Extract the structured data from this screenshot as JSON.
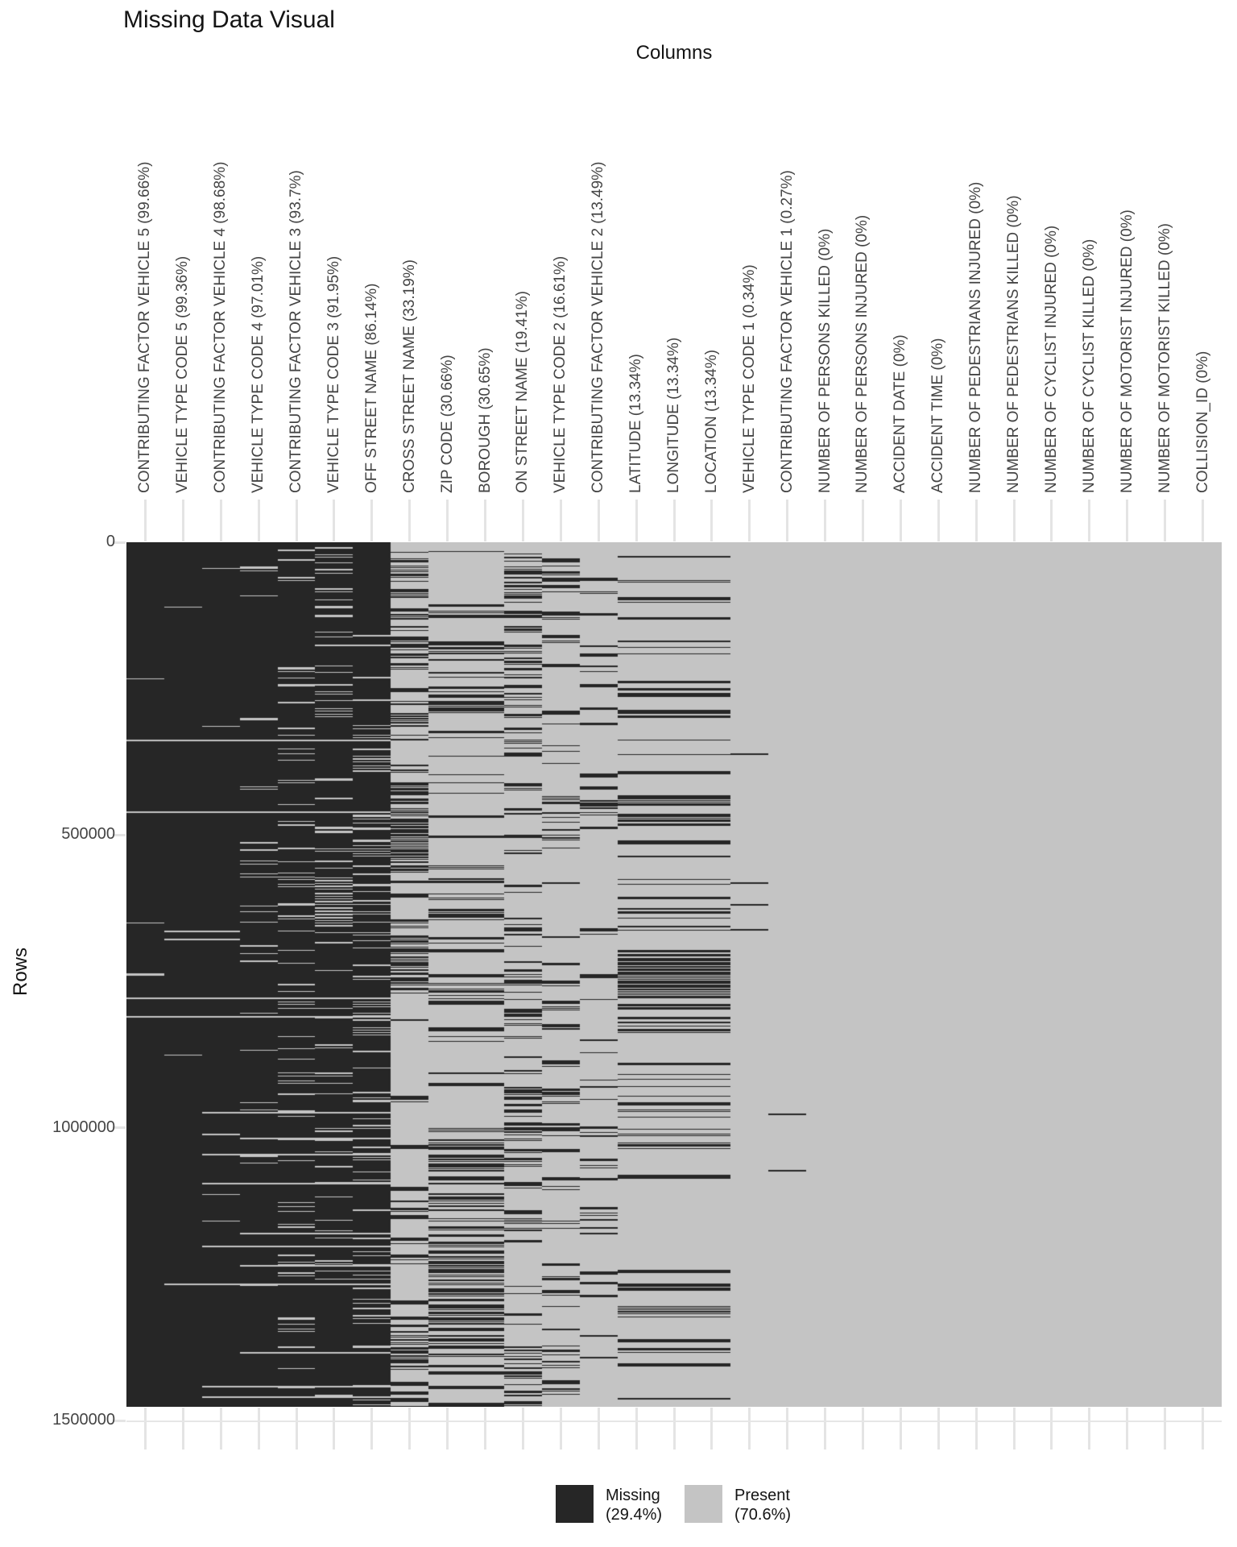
{
  "title": "Missing Data Visual",
  "x_axis": {
    "title": "Columns"
  },
  "y_axis": {
    "title": "Rows",
    "ticks": [
      "0",
      "500000",
      "1000000",
      "1500000"
    ]
  },
  "legend": {
    "missing": {
      "label": "Missing",
      "pct": "(29.4%)"
    },
    "present": {
      "label": "Present",
      "pct": "(70.6%)"
    }
  },
  "colors": {
    "missing": "#262626",
    "present": "#c4c4c4",
    "tick": "#e4e4e4",
    "grid": "#e6e6e6",
    "axis_text": "#444444",
    "title_text": "#141414"
  },
  "chart_data": {
    "type": "heatmap",
    "subtype": "missing-data-matrix",
    "title": "Missing Data Visual",
    "xlabel": "Columns",
    "ylabel": "Rows",
    "ylim": [
      0,
      1500000
    ],
    "rows_shown": 1480000,
    "overall_missing_pct": 29.4,
    "overall_present_pct": 70.6,
    "legend_position": "bottom",
    "columns": [
      {
        "label": "CONTRIBUTING FACTOR VEHICLE 5 (99.66%)",
        "missing_pct": 99.66,
        "seed": 11
      },
      {
        "label": "VEHICLE TYPE CODE 5 (99.36%)",
        "missing_pct": 99.36,
        "seed": 12
      },
      {
        "label": "CONTRIBUTING FACTOR VEHICLE 4 (98.68%)",
        "missing_pct": 98.68,
        "seed": 13
      },
      {
        "label": "VEHICLE TYPE CODE 4 (97.01%)",
        "missing_pct": 97.01,
        "seed": 14,
        "band": [
          410,
          515,
          3.2
        ]
      },
      {
        "label": "CONTRIBUTING FACTOR VEHICLE 3 (93.7%)",
        "missing_pct": 93.7,
        "seed": 15,
        "band": [
          410,
          515,
          2.0
        ]
      },
      {
        "label": "VEHICLE TYPE CODE 3 (91.95%)",
        "missing_pct": 91.95,
        "seed": 16,
        "band": [
          410,
          515,
          3.0
        ]
      },
      {
        "label": "OFF STREET NAME (86.14%)",
        "missing_pct": 86.14,
        "seed": 17
      },
      {
        "label": "CROSS STREET NAME (33.19%)",
        "missing_pct": 33.19,
        "seed": 21
      },
      {
        "label": "ZIP CODE (30.66%)",
        "missing_pct": 30.66,
        "seed": 22
      },
      {
        "label": "BOROUGH (30.65%)",
        "missing_pct": 30.65,
        "seed": 22
      },
      {
        "label": "ON STREET NAME (19.41%)",
        "missing_pct": 19.41,
        "seed": 24
      },
      {
        "label": "VEHICLE TYPE CODE 2 (16.61%)",
        "missing_pct": 16.61,
        "seed": 25,
        "band": [
          0,
          14,
          2.5
        ]
      },
      {
        "label": "CONTRIBUTING FACTOR VEHICLE 2 (13.49%)",
        "missing_pct": 13.49,
        "seed": 26
      },
      {
        "label": "LATITUDE (13.34%)",
        "missing_pct": 13.34,
        "seed": 30,
        "band": [
          512,
          562,
          4.5
        ]
      },
      {
        "label": "LONGITUDE (13.34%)",
        "missing_pct": 13.34,
        "seed": 30,
        "band": [
          512,
          562,
          4.5
        ]
      },
      {
        "label": "LOCATION (13.34%)",
        "missing_pct": 13.34,
        "seed": 30,
        "band": [
          512,
          562,
          4.5
        ]
      },
      {
        "label": "VEHICLE TYPE CODE 1 (0.34%)",
        "missing_pct": 0.34,
        "dashes": [
          262,
          422,
          449,
          480
        ]
      },
      {
        "label": "CONTRIBUTING FACTOR VEHICLE 1 (0.27%)",
        "missing_pct": 0.27,
        "dashes": [
          709,
          779
        ]
      },
      {
        "label": "NUMBER OF PERSONS KILLED (0%)",
        "missing_pct": 0
      },
      {
        "label": "NUMBER OF PERSONS INJURED (0%)",
        "missing_pct": 0
      },
      {
        "label": "ACCIDENT DATE (0%)",
        "missing_pct": 0
      },
      {
        "label": "ACCIDENT TIME (0%)",
        "missing_pct": 0
      },
      {
        "label": "NUMBER OF PEDESTRIANS INJURED (0%)",
        "missing_pct": 0
      },
      {
        "label": "NUMBER OF PEDESTRIANS KILLED (0%)",
        "missing_pct": 0
      },
      {
        "label": "NUMBER OF CYCLIST INJURED (0%)",
        "missing_pct": 0
      },
      {
        "label": "NUMBER OF CYCLIST KILLED (0%)",
        "missing_pct": 0
      },
      {
        "label": "NUMBER OF MOTORIST INJURED (0%)",
        "missing_pct": 0
      },
      {
        "label": "NUMBER OF MOTORIST KILLED (0%)",
        "missing_pct": 0
      },
      {
        "label": "COLLISION_ID (0%)",
        "missing_pct": 0
      }
    ],
    "present_lines": [
      {
        "y": 245,
        "c0": 0,
        "c1": 6
      },
      {
        "y": 334,
        "c0": 0,
        "c1": 6
      },
      {
        "y": 565,
        "c0": 0,
        "c1": 6
      },
      {
        "y": 588,
        "c0": 0,
        "c1": 6
      },
      {
        "y": 482,
        "c0": 1,
        "c1": 2
      },
      {
        "y": 492,
        "c0": 1,
        "c1": 2
      },
      {
        "y": 707,
        "c0": 2,
        "c1": 6
      },
      {
        "y": 739,
        "c0": 3,
        "c1": 6
      },
      {
        "y": 759,
        "c0": 2,
        "c1": 6
      },
      {
        "y": 795,
        "c0": 2,
        "c1": 6
      },
      {
        "y": 857,
        "c0": 3,
        "c1": 6
      },
      {
        "y": 873,
        "c0": 2,
        "c1": 6
      },
      {
        "y": 897,
        "c0": 3,
        "c1": 6
      },
      {
        "y": 920,
        "c0": 1,
        "c1": 6
      },
      {
        "y": 1005,
        "c0": 3,
        "c1": 6
      },
      {
        "y": 1047,
        "c0": 2,
        "c1": 6
      },
      {
        "y": 1060,
        "c0": 2,
        "c1": 6
      }
    ]
  }
}
